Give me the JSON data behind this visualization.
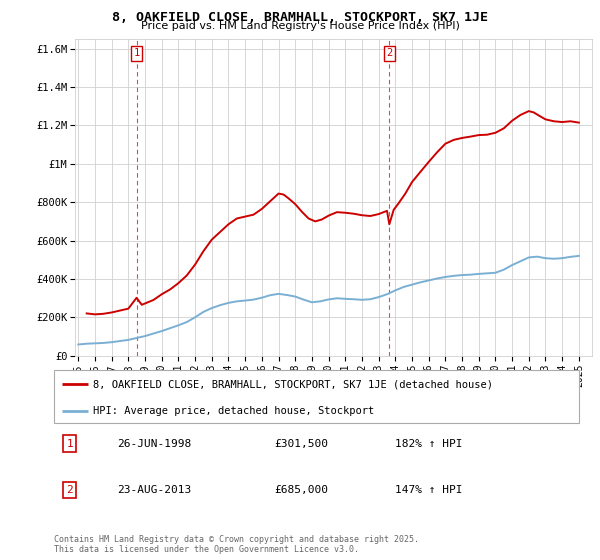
{
  "title": "8, OAKFIELD CLOSE, BRAMHALL, STOCKPORT, SK7 1JE",
  "subtitle": "Price paid vs. HM Land Registry's House Price Index (HPI)",
  "property_label": "8, OAKFIELD CLOSE, BRAMHALL, STOCKPORT, SK7 1JE (detached house)",
  "hpi_label": "HPI: Average price, detached house, Stockport",
  "property_color": "#cc0000",
  "hpi_color": "#7aafd4",
  "annotation1_num": "1",
  "annotation1_date": "26-JUN-1998",
  "annotation1_price": "£301,500",
  "annotation1_hpi": "182% ↑ HPI",
  "annotation2_num": "2",
  "annotation2_date": "23-AUG-2013",
  "annotation2_price": "£685,000",
  "annotation2_hpi": "147% ↑ HPI",
  "copyright_text": "Contains HM Land Registry data © Crown copyright and database right 2025.\nThis data is licensed under the Open Government Licence v3.0.",
  "ylim": [
    0,
    1650000
  ],
  "xlim_start": 1994.8,
  "xlim_end": 2025.8,
  "property_line": [
    [
      1995.5,
      220000
    ],
    [
      1996.0,
      215000
    ],
    [
      1996.5,
      218000
    ],
    [
      1997.0,
      225000
    ],
    [
      1997.5,
      235000
    ],
    [
      1998.0,
      245000
    ],
    [
      1998.49,
      301500
    ],
    [
      1998.8,
      265000
    ],
    [
      1999.0,
      272000
    ],
    [
      1999.5,
      290000
    ],
    [
      2000.0,
      320000
    ],
    [
      2000.5,
      345000
    ],
    [
      2001.0,
      378000
    ],
    [
      2001.5,
      418000
    ],
    [
      2002.0,
      475000
    ],
    [
      2002.5,
      545000
    ],
    [
      2003.0,
      605000
    ],
    [
      2003.5,
      645000
    ],
    [
      2004.0,
      685000
    ],
    [
      2004.5,
      715000
    ],
    [
      2005.0,
      725000
    ],
    [
      2005.5,
      735000
    ],
    [
      2006.0,
      765000
    ],
    [
      2006.5,
      805000
    ],
    [
      2007.0,
      845000
    ],
    [
      2007.3,
      840000
    ],
    [
      2007.6,
      820000
    ],
    [
      2008.0,
      790000
    ],
    [
      2008.4,
      750000
    ],
    [
      2008.8,
      715000
    ],
    [
      2009.2,
      700000
    ],
    [
      2009.6,
      710000
    ],
    [
      2010.0,
      730000
    ],
    [
      2010.5,
      748000
    ],
    [
      2011.0,
      745000
    ],
    [
      2011.5,
      740000
    ],
    [
      2012.0,
      732000
    ],
    [
      2012.5,
      728000
    ],
    [
      2013.0,
      738000
    ],
    [
      2013.5,
      755000
    ],
    [
      2013.64,
      685000
    ],
    [
      2013.9,
      760000
    ],
    [
      2014.2,
      795000
    ],
    [
      2014.6,
      845000
    ],
    [
      2015.0,
      905000
    ],
    [
      2015.5,
      958000
    ],
    [
      2016.0,
      1010000
    ],
    [
      2016.5,
      1060000
    ],
    [
      2017.0,
      1105000
    ],
    [
      2017.5,
      1125000
    ],
    [
      2018.0,
      1135000
    ],
    [
      2018.5,
      1142000
    ],
    [
      2019.0,
      1150000
    ],
    [
      2019.5,
      1152000
    ],
    [
      2020.0,
      1162000
    ],
    [
      2020.5,
      1185000
    ],
    [
      2021.0,
      1225000
    ],
    [
      2021.5,
      1255000
    ],
    [
      2022.0,
      1275000
    ],
    [
      2022.3,
      1268000
    ],
    [
      2022.6,
      1252000
    ],
    [
      2023.0,
      1232000
    ],
    [
      2023.5,
      1222000
    ],
    [
      2024.0,
      1218000
    ],
    [
      2024.5,
      1222000
    ],
    [
      2025.0,
      1215000
    ]
  ],
  "hpi_line": [
    [
      1995.0,
      58000
    ],
    [
      1995.5,
      62000
    ],
    [
      1996.0,
      64000
    ],
    [
      1996.5,
      66000
    ],
    [
      1997.0,
      70000
    ],
    [
      1997.5,
      76000
    ],
    [
      1998.0,
      82000
    ],
    [
      1998.5,
      92000
    ],
    [
      1999.0,
      102000
    ],
    [
      1999.5,
      115000
    ],
    [
      2000.0,
      128000
    ],
    [
      2000.5,
      143000
    ],
    [
      2001.0,
      158000
    ],
    [
      2001.5,
      175000
    ],
    [
      2002.0,
      200000
    ],
    [
      2002.5,
      228000
    ],
    [
      2003.0,
      248000
    ],
    [
      2003.5,
      263000
    ],
    [
      2004.0,
      275000
    ],
    [
      2004.5,
      283000
    ],
    [
      2005.0,
      287000
    ],
    [
      2005.5,
      292000
    ],
    [
      2006.0,
      302000
    ],
    [
      2006.5,
      315000
    ],
    [
      2007.0,
      322000
    ],
    [
      2007.5,
      316000
    ],
    [
      2008.0,
      308000
    ],
    [
      2008.5,
      292000
    ],
    [
      2009.0,
      278000
    ],
    [
      2009.5,
      283000
    ],
    [
      2010.0,
      293000
    ],
    [
      2010.5,
      299000
    ],
    [
      2011.0,
      296000
    ],
    [
      2011.5,
      294000
    ],
    [
      2012.0,
      291000
    ],
    [
      2012.5,
      294000
    ],
    [
      2013.0,
      305000
    ],
    [
      2013.5,
      320000
    ],
    [
      2014.0,
      340000
    ],
    [
      2014.5,
      358000
    ],
    [
      2015.0,
      370000
    ],
    [
      2015.5,
      382000
    ],
    [
      2016.0,
      392000
    ],
    [
      2016.5,
      402000
    ],
    [
      2017.0,
      410000
    ],
    [
      2017.5,
      416000
    ],
    [
      2018.0,
      420000
    ],
    [
      2018.5,
      422000
    ],
    [
      2019.0,
      426000
    ],
    [
      2019.5,
      429000
    ],
    [
      2020.0,
      432000
    ],
    [
      2020.5,
      448000
    ],
    [
      2021.0,
      472000
    ],
    [
      2021.5,
      492000
    ],
    [
      2022.0,
      512000
    ],
    [
      2022.5,
      516000
    ],
    [
      2023.0,
      508000
    ],
    [
      2023.5,
      505000
    ],
    [
      2024.0,
      508000
    ],
    [
      2024.5,
      515000
    ],
    [
      2025.0,
      520000
    ]
  ],
  "vline1_x": 1998.49,
  "vline2_x": 2013.64,
  "vline_color": "#cc0000",
  "grid_color": "#d0d0d0",
  "bg_color": "#ffffff",
  "yticks": [
    0,
    200000,
    400000,
    600000,
    800000,
    1000000,
    1200000,
    1400000,
    1600000
  ],
  "ytick_labels": [
    "£0",
    "£200K",
    "£400K",
    "£600K",
    "£800K",
    "£1M",
    "£1.2M",
    "£1.4M",
    "£1.6M"
  ],
  "xticks": [
    1995,
    1996,
    1997,
    1998,
    1999,
    2000,
    2001,
    2002,
    2003,
    2004,
    2005,
    2006,
    2007,
    2008,
    2009,
    2010,
    2011,
    2012,
    2013,
    2014,
    2015,
    2016,
    2017,
    2018,
    2019,
    2020,
    2021,
    2022,
    2023,
    2024,
    2025
  ]
}
